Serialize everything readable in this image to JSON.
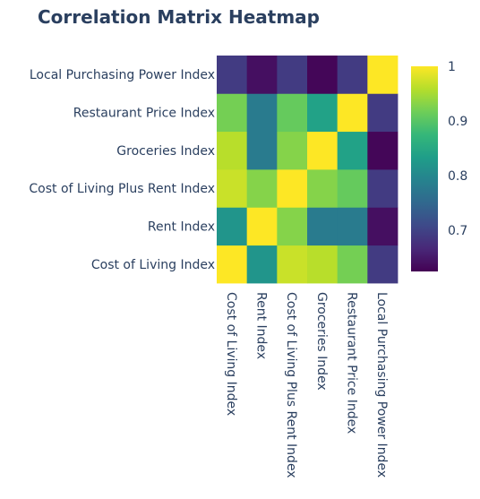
{
  "chart_data": {
    "type": "heatmap",
    "title": "Correlation Matrix Heatmap",
    "x": [
      "Cost of Living Index",
      "Rent Index",
      "Cost of Living Plus Rent Index",
      "Groceries Index",
      "Restaurant Price Index",
      "Local Purchasing Power Index"
    ],
    "y": [
      "Cost of Living Index",
      "Rent Index",
      "Cost of Living Plus Rent Index",
      "Groceries Index",
      "Restaurant Price Index",
      "Local Purchasing Power Index"
    ],
    "z": [
      [
        1.0,
        0.82,
        0.97,
        0.96,
        0.92,
        0.69
      ],
      [
        0.82,
        1.0,
        0.93,
        0.78,
        0.78,
        0.64
      ],
      [
        0.97,
        0.93,
        1.0,
        0.93,
        0.91,
        0.69
      ],
      [
        0.96,
        0.78,
        0.93,
        1.0,
        0.84,
        0.63
      ],
      [
        0.92,
        0.78,
        0.91,
        0.84,
        1.0,
        0.69
      ],
      [
        0.69,
        0.64,
        0.69,
        0.63,
        0.69,
        1.0
      ]
    ],
    "zlim": [
      0.625,
      1.0
    ],
    "colorbar": {
      "ticks": [
        0.7,
        0.8,
        0.9,
        1
      ],
      "tick_labels": [
        "0.7",
        "0.8",
        "0.9",
        "1"
      ]
    },
    "colorscale": "Viridis",
    "grid": false
  }
}
